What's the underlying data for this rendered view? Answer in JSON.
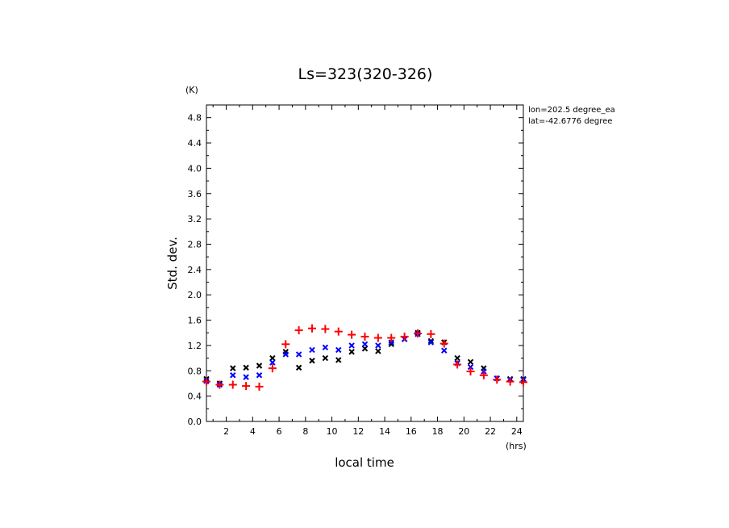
{
  "chart_data": {
    "type": "scatter",
    "title": "Ls=323(320-326)",
    "xlabel": "local time",
    "ylabel": "Std. dev.",
    "x_unit": "(hrs)",
    "y_unit": "(K)",
    "xlim": [
      0.5,
      24.5
    ],
    "ylim": [
      0.0,
      5.0
    ],
    "x_ticks": [
      2,
      4,
      6,
      8,
      10,
      12,
      14,
      16,
      18,
      20,
      22,
      24
    ],
    "x_tick_labels": [
      "2",
      "4",
      "6",
      "8",
      "10",
      "12",
      "14",
      "16",
      "18",
      "20",
      "22",
      "24"
    ],
    "y_ticks": [
      0.0,
      0.4,
      0.8,
      1.2,
      1.6,
      2.0,
      2.4,
      2.8,
      3.2,
      3.6,
      4.0,
      4.4,
      4.8
    ],
    "y_tick_labels": [
      "0.0",
      "0.4",
      "0.8",
      "1.2",
      "1.6",
      "2.0",
      "2.4",
      "2.8",
      "3.2",
      "3.6",
      "4.0",
      "4.4",
      "4.8"
    ],
    "annotations": [
      "lon=202.5 degree_ea",
      "lat=-42.6776 degree"
    ],
    "grid": false,
    "series": [
      {
        "color": "#000000",
        "marker": "x",
        "x": [
          0.5,
          1.5,
          2.5,
          3.5,
          4.5,
          5.5,
          6.5,
          7.5,
          8.5,
          9.5,
          10.5,
          11.5,
          12.5,
          13.5,
          14.5,
          15.5,
          16.5,
          17.5,
          18.5,
          19.5,
          20.5,
          21.5,
          22.5,
          23.5,
          24.5
        ],
        "y": [
          0.67,
          0.6,
          0.84,
          0.85,
          0.88,
          1.0,
          1.1,
          0.85,
          0.96,
          1.0,
          0.97,
          1.1,
          1.15,
          1.11,
          1.22,
          1.3,
          1.4,
          1.27,
          1.25,
          1.0,
          0.94,
          0.84,
          0.68,
          0.67,
          0.67
        ]
      },
      {
        "color": "#0000ff",
        "marker": "x",
        "x": [
          0.5,
          1.5,
          2.5,
          3.5,
          4.5,
          5.5,
          6.5,
          7.5,
          8.5,
          9.5,
          10.5,
          11.5,
          12.5,
          13.5,
          14.5,
          15.5,
          16.5,
          17.5,
          18.5,
          19.5,
          20.5,
          21.5,
          22.5,
          23.5,
          24.5
        ],
        "y": [
          0.64,
          0.58,
          0.73,
          0.7,
          0.73,
          0.93,
          1.06,
          1.06,
          1.13,
          1.17,
          1.13,
          1.2,
          1.22,
          1.2,
          1.25,
          1.3,
          1.38,
          1.25,
          1.12,
          0.92,
          0.86,
          0.79,
          0.68,
          0.66,
          0.66
        ]
      },
      {
        "color": "#ff0000",
        "marker": "+",
        "x": [
          0.5,
          1.5,
          2.5,
          3.5,
          4.5,
          5.5,
          6.5,
          7.5,
          8.5,
          9.5,
          10.5,
          11.5,
          12.5,
          13.5,
          14.5,
          15.5,
          16.5,
          17.5,
          18.5,
          19.5,
          20.5,
          21.5,
          22.5,
          23.5,
          24.5
        ],
        "y": [
          0.63,
          0.58,
          0.58,
          0.56,
          0.55,
          0.84,
          1.22,
          1.44,
          1.47,
          1.46,
          1.42,
          1.37,
          1.34,
          1.32,
          1.32,
          1.34,
          1.39,
          1.38,
          1.23,
          0.9,
          0.79,
          0.73,
          0.66,
          0.63,
          0.62
        ]
      }
    ]
  }
}
